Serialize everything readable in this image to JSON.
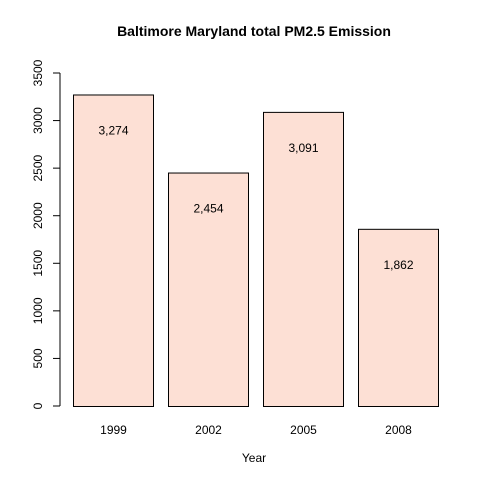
{
  "chart_data": {
    "type": "bar",
    "title": "Baltimore Maryland total PM2.5 Emission",
    "xlabel": "Year",
    "ylabel": "",
    "categories": [
      "1999",
      "2002",
      "2005",
      "2008"
    ],
    "values": [
      3274.18,
      2453.92,
      3091.35,
      1862.28
    ],
    "value_labels": [
      "3,274",
      "2,454",
      "3,091",
      "1,862"
    ],
    "y_ticks": [
      0,
      500,
      1000,
      1500,
      2000,
      2500,
      3000,
      3500
    ],
    "y_tick_labels": [
      "0",
      "500",
      "1000",
      "1500",
      "2000",
      "2500",
      "3000",
      "3500"
    ],
    "ylim": [
      0,
      3500
    ],
    "grid": false,
    "legend": "none",
    "colors": {
      "bar_fill": "#fde0d5",
      "bar_stroke": "#000000",
      "axis": "#000000"
    }
  }
}
